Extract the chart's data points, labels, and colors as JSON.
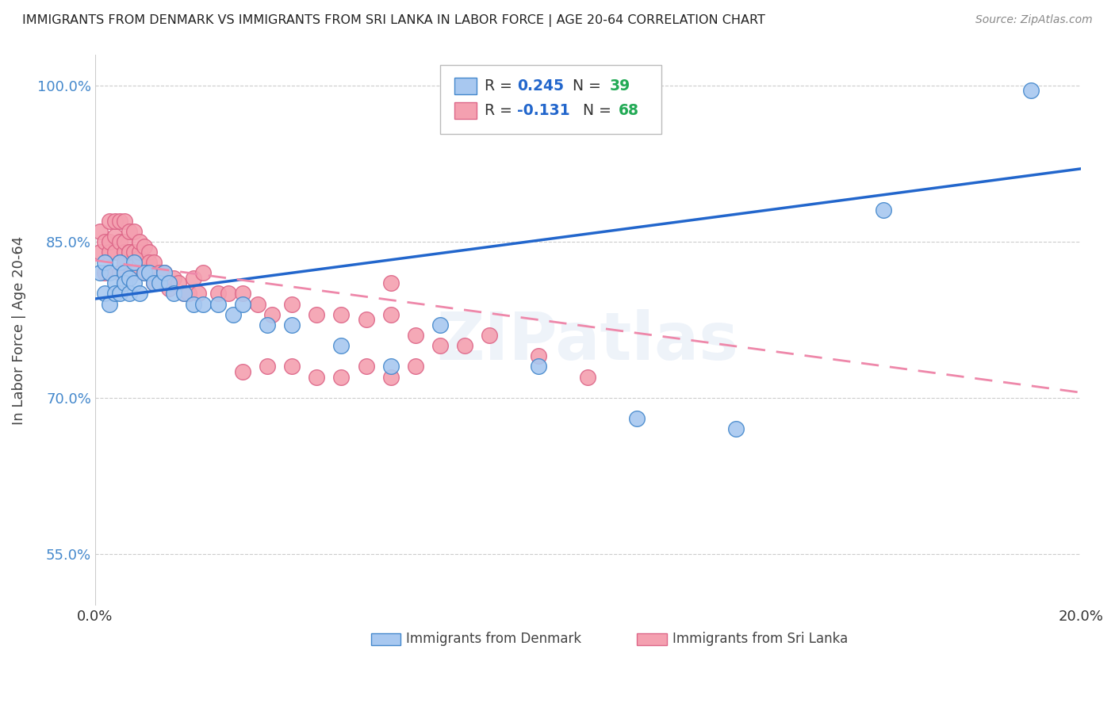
{
  "title": "IMMIGRANTS FROM DENMARK VS IMMIGRANTS FROM SRI LANKA IN LABOR FORCE | AGE 20-64 CORRELATION CHART",
  "source": "Source: ZipAtlas.com",
  "ylabel": "In Labor Force | Age 20-64",
  "xlim": [
    0.0,
    0.2
  ],
  "ylim": [
    0.5,
    1.03
  ],
  "denmark_color": "#a8c8f0",
  "srilanka_color": "#f4a0b0",
  "denmark_edge_color": "#4488cc",
  "srilanka_edge_color": "#dd6688",
  "denmark_line_color": "#2266cc",
  "srilanka_line_color": "#ee88aa",
  "legend_r_color": "#2266cc",
  "legend_n_color": "#22aa55",
  "denmark_R": 0.245,
  "denmark_N": 39,
  "srilanka_R": -0.131,
  "srilanka_N": 68,
  "denmark_trend_x0": 0.0,
  "denmark_trend_y0": 0.795,
  "denmark_trend_x1": 0.2,
  "denmark_trend_y1": 0.92,
  "srilanka_trend_x0": 0.0,
  "srilanka_trend_y0": 0.832,
  "srilanka_trend_x1": 0.2,
  "srilanka_trend_y1": 0.705,
  "denmark_x": [
    0.001,
    0.002,
    0.002,
    0.003,
    0.003,
    0.004,
    0.004,
    0.005,
    0.005,
    0.006,
    0.006,
    0.007,
    0.007,
    0.008,
    0.008,
    0.009,
    0.01,
    0.011,
    0.012,
    0.013,
    0.014,
    0.015,
    0.016,
    0.018,
    0.02,
    0.022,
    0.025,
    0.028,
    0.03,
    0.035,
    0.04,
    0.05,
    0.06,
    0.07,
    0.09,
    0.11,
    0.13,
    0.16,
    0.19
  ],
  "denmark_y": [
    0.82,
    0.83,
    0.8,
    0.82,
    0.79,
    0.81,
    0.8,
    0.83,
    0.8,
    0.82,
    0.81,
    0.815,
    0.8,
    0.81,
    0.83,
    0.8,
    0.82,
    0.82,
    0.81,
    0.81,
    0.82,
    0.81,
    0.8,
    0.8,
    0.79,
    0.79,
    0.79,
    0.78,
    0.79,
    0.77,
    0.77,
    0.75,
    0.73,
    0.77,
    0.73,
    0.68,
    0.67,
    0.88,
    0.995
  ],
  "srilanka_x": [
    0.001,
    0.001,
    0.002,
    0.002,
    0.003,
    0.003,
    0.003,
    0.004,
    0.004,
    0.004,
    0.005,
    0.005,
    0.005,
    0.006,
    0.006,
    0.006,
    0.006,
    0.007,
    0.007,
    0.007,
    0.008,
    0.008,
    0.008,
    0.009,
    0.009,
    0.009,
    0.01,
    0.01,
    0.011,
    0.011,
    0.012,
    0.012,
    0.013,
    0.013,
    0.014,
    0.015,
    0.016,
    0.017,
    0.018,
    0.019,
    0.02,
    0.021,
    0.022,
    0.025,
    0.027,
    0.03,
    0.033,
    0.036,
    0.04,
    0.045,
    0.05,
    0.055,
    0.06,
    0.06,
    0.065,
    0.07,
    0.075,
    0.08,
    0.09,
    0.1,
    0.04,
    0.045,
    0.05,
    0.055,
    0.06,
    0.065,
    0.035,
    0.03
  ],
  "srilanka_y": [
    0.84,
    0.86,
    0.82,
    0.85,
    0.84,
    0.87,
    0.85,
    0.855,
    0.84,
    0.87,
    0.85,
    0.87,
    0.82,
    0.84,
    0.87,
    0.85,
    0.83,
    0.84,
    0.86,
    0.84,
    0.84,
    0.86,
    0.82,
    0.835,
    0.84,
    0.85,
    0.845,
    0.82,
    0.84,
    0.83,
    0.81,
    0.83,
    0.82,
    0.815,
    0.82,
    0.805,
    0.815,
    0.81,
    0.8,
    0.8,
    0.815,
    0.8,
    0.82,
    0.8,
    0.8,
    0.8,
    0.79,
    0.78,
    0.79,
    0.78,
    0.78,
    0.775,
    0.81,
    0.78,
    0.76,
    0.75,
    0.75,
    0.76,
    0.74,
    0.72,
    0.73,
    0.72,
    0.72,
    0.73,
    0.72,
    0.73,
    0.73,
    0.725
  ]
}
